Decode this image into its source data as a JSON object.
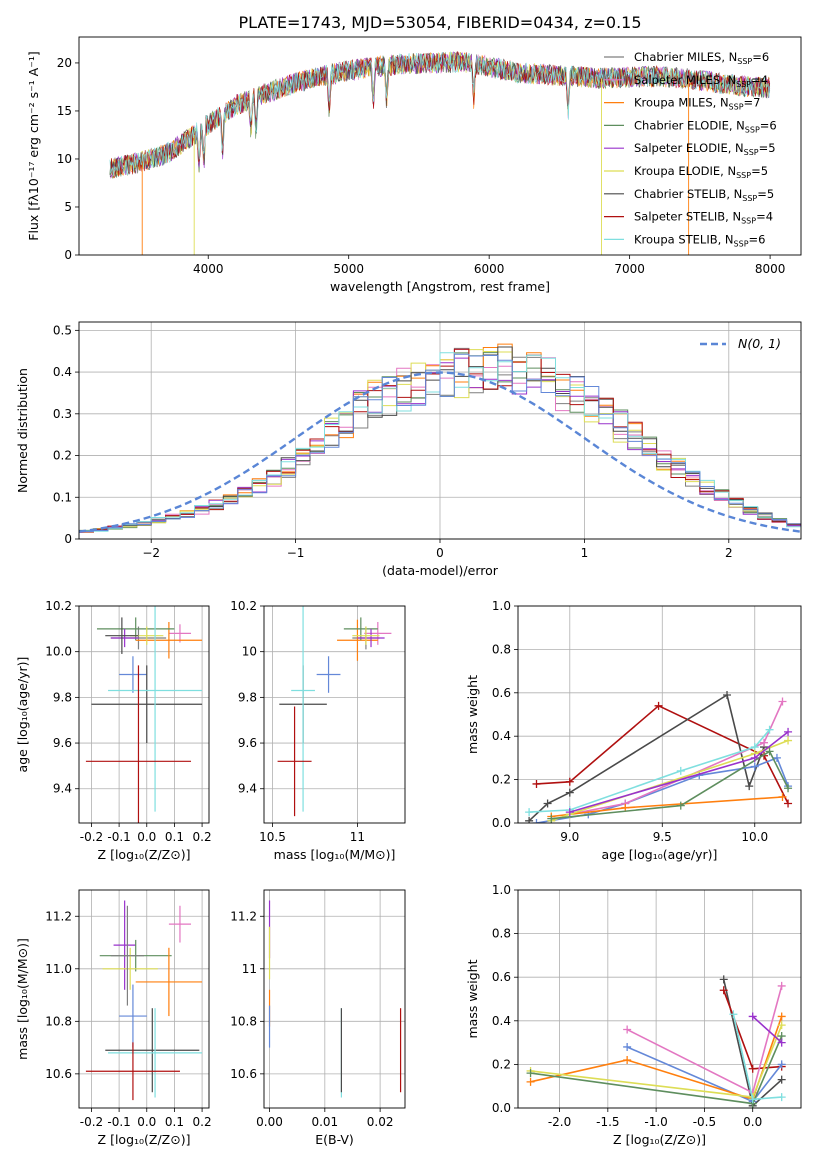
{
  "figure": {
    "title": "PLATE=1743, MJD=53054, FIBERID=0434, z=0.15"
  },
  "colors": {
    "chabrier_miles": "#7f7f7f",
    "salpeter_miles": "#e377c2",
    "kroupa_miles": "#ff7f0e",
    "chabrier_elodie": "#5e8e5e",
    "salpeter_elodie": "#9932cc",
    "kroupa_elodie": "#dddd55",
    "chabrier_stelib": "#4a4a4a",
    "salpeter_stelib": "#b01010",
    "kroupa_stelib": "#7fdfdf",
    "model_blue": "#6488d8",
    "normal_curve": "#5a86d6",
    "grid": "#b0b0b0"
  },
  "chart_data": [
    {
      "id": "spectrum",
      "type": "line",
      "xlabel": "wavelength [Angstrom, rest frame]",
      "ylabel": "Flux [fλ10⁻¹⁷ erg cm⁻² s⁻¹ A⁻¹]",
      "xlim": [
        3080,
        8220
      ],
      "ylim": [
        0,
        22.7
      ],
      "xticks": [
        4000,
        5000,
        6000,
        7000,
        8000
      ],
      "yticks": [
        0,
        5,
        10,
        15,
        20
      ],
      "grid": false,
      "legend_placement": "upper-right",
      "continuum": {
        "x": [
          3300,
          3500,
          3700,
          3900,
          4000,
          4200,
          4400,
          4600,
          4800,
          5000,
          5200,
          5400,
          5600,
          5800,
          6000,
          6200,
          6400,
          6600,
          6800,
          7000,
          7200,
          7400,
          7600,
          7800,
          8000
        ],
        "y": [
          9.0,
          9.6,
          10.5,
          12.5,
          13.6,
          15.6,
          16.8,
          17.8,
          18.6,
          19.2,
          19.6,
          19.9,
          20.0,
          20.1,
          19.6,
          19.0,
          18.8,
          18.6,
          18.4,
          18.5,
          18.6,
          18.4,
          18.0,
          17.6,
          17.4
        ]
      },
      "series": [
        {
          "name": "Chabrier MILES, N_SSP=6",
          "color_key": "chabrier_miles"
        },
        {
          "name": "Salpeter MILES, N_SSP=4",
          "color_key": "salpeter_miles"
        },
        {
          "name": "Kroupa MILES, N_SSP=7",
          "color_key": "kroupa_miles"
        },
        {
          "name": "Chabrier ELODIE, N_SSP=6",
          "color_key": "chabrier_elodie"
        },
        {
          "name": "Salpeter ELODIE, N_SSP=5",
          "color_key": "salpeter_elodie"
        },
        {
          "name": "Kroupa ELODIE, N_SSP=5",
          "color_key": "kroupa_elodie"
        },
        {
          "name": "Chabrier STELIB, N_SSP=5",
          "color_key": "chabrier_stelib"
        },
        {
          "name": "Salpeter STELIB, N_SSP=4",
          "color_key": "salpeter_stelib"
        },
        {
          "name": "Kroupa STELIB, N_SSP=6",
          "color_key": "kroupa_stelib"
        }
      ]
    },
    {
      "id": "residuals",
      "type": "histogram",
      "xlabel": "(data-model)/error",
      "ylabel": "Normed distribution",
      "xlim": [
        -2.5,
        2.5
      ],
      "ylim": [
        0,
        0.52
      ],
      "xticks": [
        -2,
        -1,
        0,
        1,
        2
      ],
      "yticks": [
        0.0,
        0.1,
        0.2,
        0.3,
        0.4,
        0.5
      ],
      "grid": true,
      "legend_placement": "upper-right",
      "reference_label": "N(0, 1)",
      "bin_width": 0.1,
      "bin_start": -2.5,
      "distribution": [
        0.018,
        0.022,
        0.027,
        0.032,
        0.038,
        0.045,
        0.052,
        0.06,
        0.07,
        0.082,
        0.095,
        0.11,
        0.128,
        0.148,
        0.17,
        0.195,
        0.222,
        0.252,
        0.282,
        0.31,
        0.332,
        0.348,
        0.36,
        0.372,
        0.384,
        0.392,
        0.398,
        0.402,
        0.405,
        0.407,
        0.405,
        0.395,
        0.38,
        0.362,
        0.342,
        0.32,
        0.296,
        0.27,
        0.244,
        0.218,
        0.193,
        0.168,
        0.145,
        0.123,
        0.103,
        0.085,
        0.069,
        0.055,
        0.043,
        0.033
      ]
    },
    {
      "id": "age_vs_Z",
      "type": "errorbar",
      "xlabel": "Z [log₁₀(Z/Z⊙)]",
      "ylabel": "age  [log₁₀(age/yr)]",
      "xlim": [
        -0.245,
        0.225
      ],
      "ylim": [
        9.25,
        10.2
      ],
      "xticks": [
        -0.2,
        -0.1,
        0.0,
        0.1,
        0.2
      ],
      "yticks": [
        9.4,
        9.6,
        9.8,
        10.0,
        10.2
      ],
      "grid": true,
      "points": [
        {
          "c": "chabrier_miles",
          "x": -0.03,
          "y": 10.06,
          "xe": 0.1,
          "ye": 0.05
        },
        {
          "c": "salpeter_miles",
          "x": 0.12,
          "y": 10.08,
          "xe": 0.04,
          "ye": 0.04
        },
        {
          "c": "kroupa_miles",
          "x": 0.08,
          "y": 10.05,
          "xe": 0.12,
          "ye": 0.08
        },
        {
          "c": "chabrier_elodie",
          "x": -0.04,
          "y": 10.1,
          "xe": 0.14,
          "ye": 0.05
        },
        {
          "c": "salpeter_elodie",
          "x": -0.08,
          "y": 10.06,
          "xe": 0.05,
          "ye": 0.04
        },
        {
          "c": "kroupa_elodie",
          "x": 0.0,
          "y": 10.07,
          "xe": 0.06,
          "ye": 0.04
        },
        {
          "c": "chabrier_stelib",
          "x": -0.09,
          "y": 10.07,
          "xe": 0.06,
          "ye": 0.08
        },
        {
          "c": "model_blue",
          "x": -0.05,
          "y": 9.9,
          "xe": 0.05,
          "ye": 0.08
        },
        {
          "c": "chabrier_stelib",
          "x": 0.0,
          "y": 9.77,
          "xe": 0.2,
          "ye": 0.17
        },
        {
          "c": "kroupa_stelib",
          "x": 0.03,
          "y": 9.83,
          "xe": 0.17,
          "ye": 0.53
        },
        {
          "c": "salpeter_stelib",
          "x": -0.03,
          "y": 9.52,
          "xe": 0.19,
          "ye": 0.42
        }
      ]
    },
    {
      "id": "age_vs_mass",
      "type": "errorbar",
      "xlabel": "mass [log₁₀(M/M⊙)]",
      "ylabel": "",
      "xlim": [
        10.45,
        11.28
      ],
      "ylim": [
        9.25,
        10.2
      ],
      "xticks": [
        10.5,
        11.0
      ],
      "yticks": [
        9.4,
        9.6,
        9.8,
        10.0,
        10.2
      ],
      "grid": true,
      "points": [
        {
          "c": "chabrier_miles",
          "x": 11.05,
          "y": 10.06,
          "xe": 0.08,
          "ye": 0.05
        },
        {
          "c": "salpeter_miles",
          "x": 11.12,
          "y": 10.08,
          "xe": 0.08,
          "ye": 0.05
        },
        {
          "c": "kroupa_miles",
          "x": 11.0,
          "y": 10.05,
          "xe": 0.12,
          "ye": 0.09
        },
        {
          "c": "chabrier_elodie",
          "x": 11.02,
          "y": 10.1,
          "xe": 0.1,
          "ye": 0.05
        },
        {
          "c": "salpeter_elodie",
          "x": 11.08,
          "y": 10.06,
          "xe": 0.08,
          "ye": 0.04
        },
        {
          "c": "kroupa_elodie",
          "x": 11.05,
          "y": 10.07,
          "xe": 0.08,
          "ye": 0.04
        },
        {
          "c": "model_blue",
          "x": 10.83,
          "y": 9.9,
          "xe": 0.07,
          "ye": 0.08
        },
        {
          "c": "chabrier_stelib",
          "x": 10.68,
          "y": 9.77,
          "xe": 0.14,
          "ye": 0.17
        },
        {
          "c": "kroupa_stelib",
          "x": 10.68,
          "y": 9.83,
          "xe": 0.07,
          "ye": 0.53
        },
        {
          "c": "salpeter_stelib",
          "x": 10.63,
          "y": 9.52,
          "xe": 0.1,
          "ye": 0.24
        }
      ]
    },
    {
      "id": "weight_vs_age",
      "type": "line",
      "xlabel": "age  [log₁₀(age/yr)]",
      "ylabel": "mass weight",
      "xlim": [
        8.72,
        10.25
      ],
      "ylim": [
        0,
        1.0
      ],
      "xticks": [
        9.0,
        9.5,
        10.0
      ],
      "yticks": [
        0.0,
        0.2,
        0.4,
        0.6,
        0.8,
        1.0
      ],
      "grid": true,
      "series": [
        {
          "c": "salpeter_stelib",
          "x": [
            8.82,
            9.0,
            9.48,
            10.05,
            10.18
          ],
          "y": [
            0.18,
            0.19,
            0.54,
            0.31,
            0.09
          ]
        },
        {
          "c": "chabrier_stelib",
          "x": [
            8.78,
            8.88,
            9.0,
            9.85,
            9.97,
            10.05
          ],
          "y": [
            0.01,
            0.09,
            0.14,
            0.59,
            0.17,
            0.35
          ]
        },
        {
          "c": "model_blue",
          "x": [
            8.82,
            9.1,
            9.3,
            9.7,
            10.0,
            10.12,
            10.18
          ],
          "y": [
            0.0,
            0.04,
            0.09,
            0.22,
            0.26,
            0.3,
            0.17
          ]
        },
        {
          "c": "salpeter_miles",
          "x": [
            9.0,
            9.3,
            10.05,
            10.15
          ],
          "y": [
            0.04,
            0.09,
            0.37,
            0.56
          ]
        },
        {
          "c": "kroupa_miles",
          "x": [
            8.9,
            9.3,
            10.15
          ],
          "y": [
            0.03,
            0.07,
            0.12
          ]
        },
        {
          "c": "kroupa_stelib",
          "x": [
            8.78,
            9.0,
            9.6,
            10.0,
            10.08
          ],
          "y": [
            0.05,
            0.06,
            0.24,
            0.35,
            0.43
          ]
        },
        {
          "c": "kroupa_elodie",
          "x": [
            8.9,
            9.0,
            10.0,
            10.18
          ],
          "y": [
            0.01,
            0.04,
            0.32,
            0.38
          ]
        },
        {
          "c": "chabrier_elodie",
          "x": [
            8.9,
            9.6,
            10.08,
            10.18
          ],
          "y": [
            0.02,
            0.08,
            0.33,
            0.16
          ]
        },
        {
          "c": "salpeter_elodie",
          "x": [
            9.0,
            10.0,
            10.18
          ],
          "y": [
            0.05,
            0.3,
            0.42
          ]
        }
      ]
    },
    {
      "id": "mass_vs_Z",
      "type": "errorbar",
      "xlabel": "Z [log₁₀(Z/Z⊙)]",
      "ylabel": "mass [log₁₀(M/M⊙)]",
      "xlim": [
        -0.245,
        0.225
      ],
      "ylim": [
        10.47,
        11.3
      ],
      "xticks": [
        -0.2,
        -0.1,
        0.0,
        0.1,
        0.2
      ],
      "yticks": [
        10.6,
        10.8,
        11.0,
        11.2
      ],
      "grid": true,
      "points": [
        {
          "c": "salpeter_miles",
          "x": 0.12,
          "y": 11.17,
          "xe": 0.04,
          "ye": 0.07
        },
        {
          "c": "salpeter_elodie",
          "x": -0.08,
          "y": 11.09,
          "xe": 0.04,
          "ye": 0.17
        },
        {
          "c": "chabrier_elodie",
          "x": -0.04,
          "y": 11.05,
          "xe": 0.13,
          "ye": 0.06
        },
        {
          "c": "kroupa_elodie",
          "x": -0.06,
          "y": 11.0,
          "xe": 0.1,
          "ye": 0.08
        },
        {
          "c": "kroupa_miles",
          "x": 0.08,
          "y": 10.95,
          "xe": 0.12,
          "ye": 0.13
        },
        {
          "c": "chabrier_miles",
          "x": -0.07,
          "y": 11.05,
          "xe": 0.06,
          "ye": 0.19
        },
        {
          "c": "model_blue",
          "x": -0.05,
          "y": 10.82,
          "xe": 0.05,
          "ye": 0.12
        },
        {
          "c": "chabrier_stelib",
          "x": 0.02,
          "y": 10.69,
          "xe": 0.17,
          "ye": 0.16
        },
        {
          "c": "kroupa_stelib",
          "x": 0.03,
          "y": 10.68,
          "xe": 0.17,
          "ye": 0.17
        },
        {
          "c": "salpeter_stelib",
          "x": -0.05,
          "y": 10.61,
          "xe": 0.17,
          "ye": 0.11
        }
      ]
    },
    {
      "id": "mass_vs_ebv",
      "type": "errorbar",
      "xlabel": "E(B-V)",
      "ylabel": "",
      "xlim": [
        -0.001,
        0.0245
      ],
      "ylim": [
        10.47,
        11.3
      ],
      "xticks": [
        0.0,
        0.01,
        0.02
      ],
      "yticks": [
        10.6,
        10.8,
        11.0,
        11.2
      ],
      "grid": true,
      "points": [
        {
          "c": "salpeter_elodie",
          "x": 0.0,
          "y": 11.15,
          "xe": 0.0,
          "ye": 0.11
        },
        {
          "c": "kroupa_elodie",
          "x": 0.0,
          "y": 11.06,
          "xe": 0.0,
          "ye": 0.1
        },
        {
          "c": "kroupa_miles",
          "x": 0.0,
          "y": 10.85,
          "xe": 0.0,
          "ye": 0.07
        },
        {
          "c": "model_blue",
          "x": 0.0,
          "y": 10.78,
          "xe": 0.0,
          "ye": 0.08
        },
        {
          "c": "kroupa_stelib",
          "x": 0.013,
          "y": 10.68,
          "xe": 0.0,
          "ye": 0.17
        },
        {
          "c": "chabrier_stelib",
          "x": 0.013,
          "y": 10.69,
          "xe": 0.0,
          "ye": 0.16
        },
        {
          "c": "salpeter_stelib",
          "x": 0.0237,
          "y": 10.69,
          "xe": 0.0,
          "ye": 0.16
        }
      ]
    },
    {
      "id": "weight_vs_Z",
      "type": "line",
      "xlabel": "Z [log₁₀(Z/Z⊙)]",
      "ylabel": "mass weight",
      "xlim": [
        -2.43,
        0.5
      ],
      "ylim": [
        0,
        1.0
      ],
      "xticks": [
        -2.0,
        -1.5,
        -1.0,
        -0.5,
        0.0
      ],
      "yticks": [
        0.0,
        0.2,
        0.4,
        0.6,
        0.8,
        1.0
      ],
      "grid": true,
      "series": [
        {
          "c": "chabrier_stelib",
          "x": [
            -0.3,
            0.0,
            0.3
          ],
          "y": [
            0.59,
            0.01,
            0.13
          ]
        },
        {
          "c": "salpeter_stelib",
          "x": [
            -0.3,
            0.0,
            0.3
          ],
          "y": [
            0.54,
            0.18,
            0.19
          ]
        },
        {
          "c": "salpeter_miles",
          "x": [
            -1.3,
            0.0,
            0.3
          ],
          "y": [
            0.36,
            0.07,
            0.56
          ]
        },
        {
          "c": "model_blue",
          "x": [
            -1.3,
            0.0,
            0.3
          ],
          "y": [
            0.28,
            0.03,
            0.2
          ]
        },
        {
          "c": "kroupa_miles",
          "x": [
            -2.3,
            -1.3,
            0.0,
            0.3
          ],
          "y": [
            0.12,
            0.22,
            0.04,
            0.42
          ]
        },
        {
          "c": "kroupa_elodie",
          "x": [
            -2.3,
            0.0,
            0.3
          ],
          "y": [
            0.17,
            0.05,
            0.38
          ]
        },
        {
          "c": "chabrier_elodie",
          "x": [
            -2.3,
            0.0,
            0.3
          ],
          "y": [
            0.16,
            0.02,
            0.33
          ]
        },
        {
          "c": "kroupa_stelib",
          "x": [
            -0.2,
            0.0,
            0.3
          ],
          "y": [
            0.43,
            0.04,
            0.05
          ]
        },
        {
          "c": "salpeter_elodie",
          "x": [
            0.0,
            0.3
          ],
          "y": [
            0.42,
            0.3
          ]
        }
      ]
    }
  ]
}
